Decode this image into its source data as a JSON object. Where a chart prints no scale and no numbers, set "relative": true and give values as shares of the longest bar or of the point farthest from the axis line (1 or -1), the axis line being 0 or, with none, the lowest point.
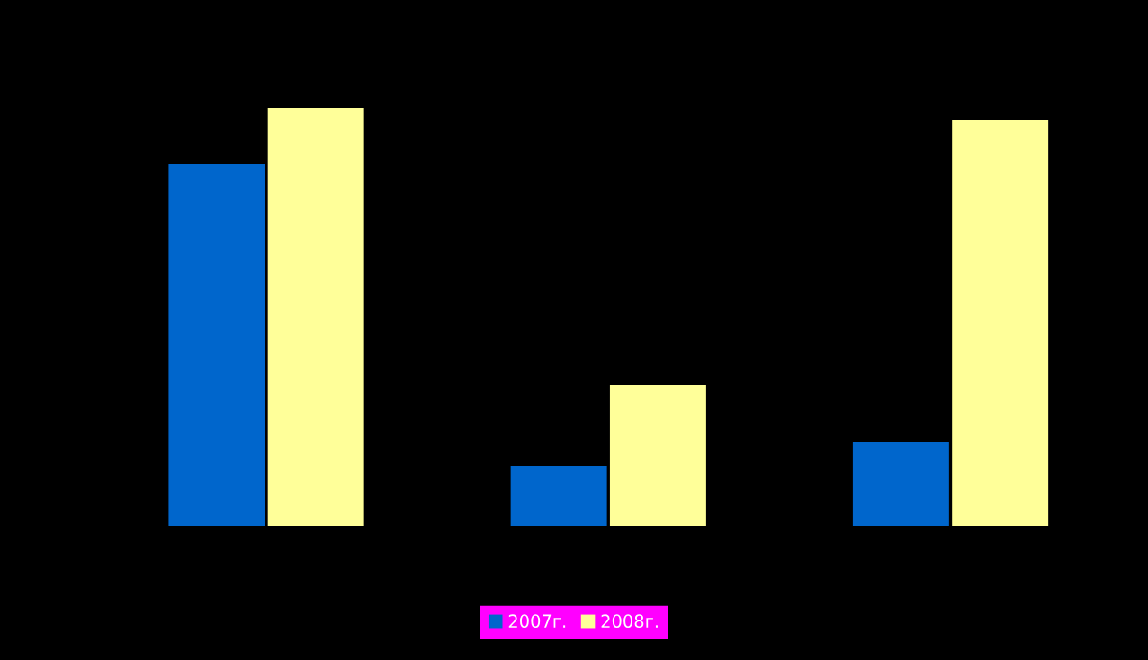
{
  "chart_data": {
    "type": "bar",
    "relative": true,
    "categories": [
      null,
      null,
      null
    ],
    "series": [
      {
        "name": "2007г.",
        "color": "#0066cc",
        "values": [
          0.867,
          0.146,
          0.202
        ]
      },
      {
        "name": "2008г.",
        "color": "#ffff99",
        "values": [
          1,
          0.339,
          0.97
        ]
      }
    ],
    "legend": "bottom"
  }
}
